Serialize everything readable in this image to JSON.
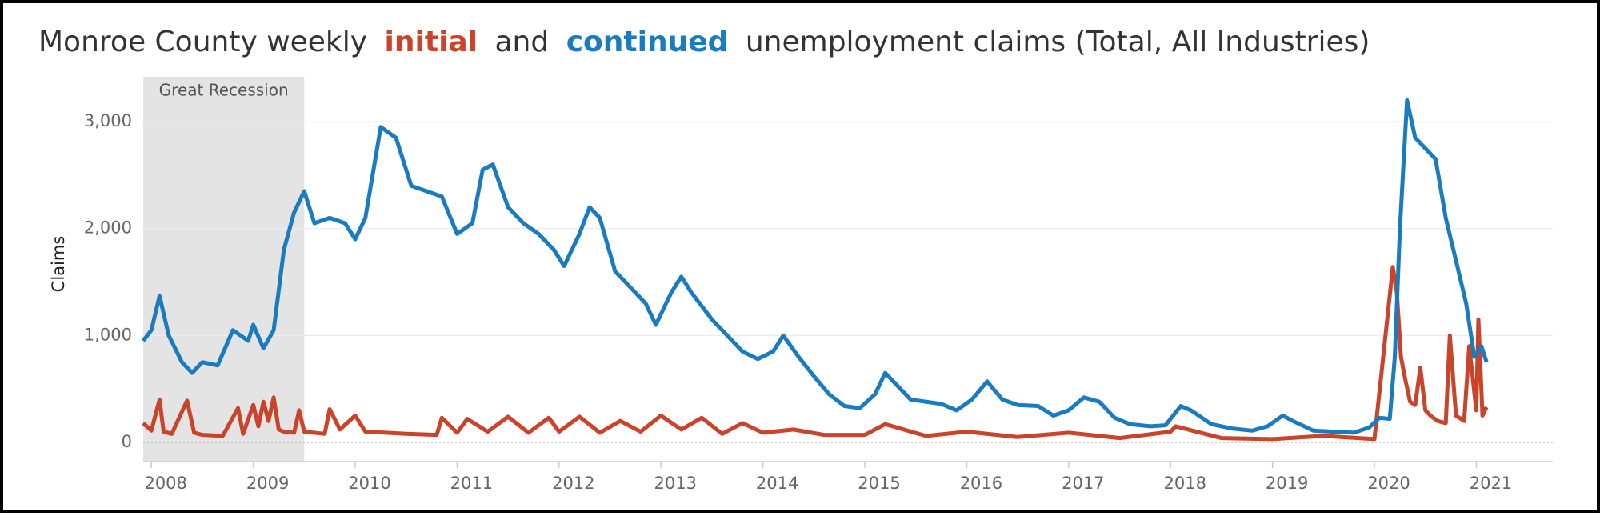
{
  "chart_data": {
    "type": "line",
    "title": {
      "before": "Monroe County weekly",
      "middle": "and",
      "after": "unemployment claims (Total, All Industries)"
    },
    "y_label": "Claims",
    "shade": {
      "label": "Great Recession",
      "x": [
        2007.92,
        2009.5
      ]
    },
    "xlim": [
      2007.92,
      2021.75
    ],
    "xticks": [
      2008,
      2009,
      2010,
      2011,
      2012,
      2013,
      2014,
      2015,
      2016,
      2017,
      2018,
      2019,
      2020,
      2021
    ],
    "ylim": [
      -180,
      3420
    ],
    "yticks": [
      0,
      {
        "value": 1000,
        "label": "1,000"
      },
      {
        "value": 2000,
        "label": "2,000"
      },
      {
        "value": 3000,
        "label": "3,000"
      }
    ],
    "grid": true,
    "series": [
      {
        "name": "initial",
        "color": "#c8442a",
        "x": [
          2007.92,
          2008.0,
          2008.08,
          2008.12,
          2008.2,
          2008.35,
          2008.42,
          2008.5,
          2008.7,
          2008.85,
          2008.9,
          2009.0,
          2009.05,
          2009.1,
          2009.15,
          2009.2,
          2009.25,
          2009.3,
          2009.4,
          2009.45,
          2009.5,
          2009.7,
          2009.75,
          2009.85,
          2010.0,
          2010.1,
          2010.3,
          2010.5,
          2010.8,
          2010.85,
          2011.0,
          2011.1,
          2011.3,
          2011.5,
          2011.7,
          2011.9,
          2012.0,
          2012.2,
          2012.4,
          2012.6,
          2012.8,
          2013.0,
          2013.2,
          2013.4,
          2013.6,
          2013.8,
          2014.0,
          2014.3,
          2014.6,
          2015.0,
          2015.2,
          2015.6,
          2016.0,
          2016.5,
          2017.0,
          2017.5,
          2018.0,
          2018.05,
          2018.5,
          2019.0,
          2019.5,
          2020.0,
          2020.18,
          2020.22,
          2020.26,
          2020.3,
          2020.35,
          2020.4,
          2020.45,
          2020.5,
          2020.55,
          2020.62,
          2020.7,
          2020.74,
          2020.8,
          2020.88,
          2020.93,
          2021.0,
          2021.02,
          2021.06,
          2021.1
        ],
        "values": [
          180,
          110,
          400,
          100,
          80,
          390,
          90,
          70,
          60,
          320,
          80,
          350,
          150,
          380,
          200,
          420,
          120,
          100,
          90,
          300,
          100,
          80,
          310,
          120,
          250,
          100,
          90,
          80,
          70,
          230,
          90,
          220,
          100,
          240,
          90,
          230,
          100,
          240,
          90,
          200,
          100,
          250,
          120,
          230,
          80,
          180,
          90,
          120,
          70,
          70,
          170,
          60,
          100,
          50,
          90,
          40,
          100,
          150,
          40,
          30,
          60,
          30,
          1640,
          1400,
          800,
          600,
          380,
          350,
          700,
          300,
          250,
          200,
          180,
          1000,
          250,
          200,
          900,
          300,
          1150,
          250,
          330
        ]
      },
      {
        "name": "continued",
        "color": "#1a7bbf",
        "x": [
          2007.92,
          2008.0,
          2008.08,
          2008.17,
          2008.3,
          2008.4,
          2008.5,
          2008.65,
          2008.8,
          2008.95,
          2009.0,
          2009.1,
          2009.2,
          2009.3,
          2009.4,
          2009.5,
          2009.6,
          2009.75,
          2009.9,
          2010.0,
          2010.1,
          2010.25,
          2010.4,
          2010.55,
          2010.7,
          2010.85,
          2011.0,
          2011.15,
          2011.25,
          2011.35,
          2011.5,
          2011.65,
          2011.8,
          2011.95,
          2012.05,
          2012.2,
          2012.3,
          2012.4,
          2012.55,
          2012.7,
          2012.85,
          2012.95,
          2013.1,
          2013.2,
          2013.3,
          2013.5,
          2013.65,
          2013.8,
          2013.95,
          2014.1,
          2014.2,
          2014.35,
          2014.5,
          2014.65,
          2014.8,
          2014.95,
          2015.1,
          2015.2,
          2015.3,
          2015.45,
          2015.6,
          2015.75,
          2015.9,
          2016.05,
          2016.2,
          2016.35,
          2016.5,
          2016.7,
          2016.85,
          2017.0,
          2017.15,
          2017.3,
          2017.45,
          2017.6,
          2017.8,
          2017.95,
          2018.1,
          2018.2,
          2018.4,
          2018.6,
          2018.8,
          2018.95,
          2019.1,
          2019.2,
          2019.4,
          2019.6,
          2019.8,
          2019.95,
          2020.05,
          2020.15,
          2020.2,
          2020.25,
          2020.32,
          2020.4,
          2020.5,
          2020.6,
          2020.7,
          2020.8,
          2020.9,
          2020.98,
          2021.05,
          2021.1
        ],
        "values": [
          950,
          1050,
          1370,
          1000,
          750,
          650,
          750,
          720,
          1050,
          950,
          1100,
          880,
          1050,
          1800,
          2150,
          2350,
          2050,
          2100,
          2050,
          1900,
          2100,
          2950,
          2850,
          2400,
          2350,
          2300,
          1950,
          2050,
          2550,
          2600,
          2200,
          2050,
          1950,
          1800,
          1650,
          1950,
          2200,
          2100,
          1600,
          1450,
          1300,
          1100,
          1400,
          1550,
          1400,
          1150,
          1000,
          850,
          780,
          850,
          1000,
          800,
          620,
          450,
          340,
          320,
          450,
          650,
          550,
          400,
          380,
          360,
          300,
          400,
          570,
          400,
          350,
          340,
          250,
          300,
          420,
          380,
          230,
          170,
          150,
          160,
          340,
          300,
          170,
          130,
          110,
          150,
          250,
          200,
          110,
          100,
          90,
          140,
          230,
          220,
          800,
          2000,
          3200,
          2850,
          2750,
          2650,
          2100,
          1700,
          1300,
          800,
          900,
          750
        ]
      }
    ]
  }
}
